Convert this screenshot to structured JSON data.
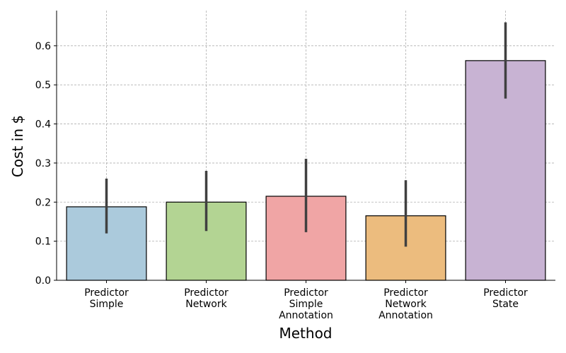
{
  "chart_data": {
    "type": "bar",
    "categories": [
      [
        "Predictor",
        "Simple"
      ],
      [
        "Predictor",
        "Network"
      ],
      [
        "Predictor",
        "Simple",
        "Annotation"
      ],
      [
        "Predictor",
        "Network",
        "Annotation"
      ],
      [
        "Predictor",
        "State"
      ]
    ],
    "values": [
      0.188,
      0.2,
      0.215,
      0.165,
      0.562
    ],
    "error_low": [
      0.12,
      0.126,
      0.123,
      0.086,
      0.465
    ],
    "error_high": [
      0.26,
      0.28,
      0.311,
      0.256,
      0.66
    ],
    "colors": [
      "#abcadc",
      "#b3d493",
      "#f0a5a5",
      "#ecbc7e",
      "#c8b3d3"
    ],
    "error_color": "#404040",
    "xlabel": "Method",
    "ylabel": "Cost in $",
    "ylim": [
      0,
      0.69
    ],
    "yticks": [
      0.0,
      0.1,
      0.2,
      0.3,
      0.4,
      0.5,
      0.6
    ],
    "ytick_labels": [
      "0.0",
      "0.1",
      "0.2",
      "0.3",
      "0.4",
      "0.5",
      "0.6"
    ],
    "grid": true
  }
}
